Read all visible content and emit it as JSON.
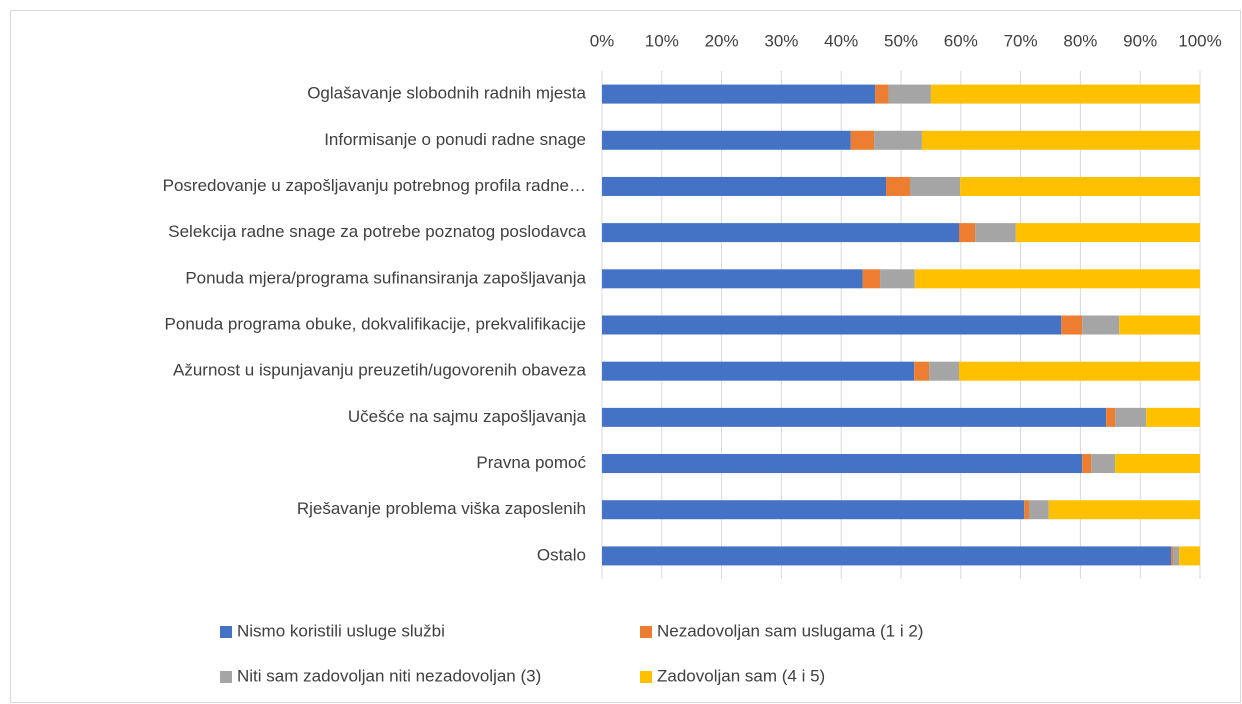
{
  "chart_data": {
    "type": "stacked_bar_horizontal",
    "categories": [
      "Oglašavanje slobodnih radnih mjesta",
      "Informisanje o ponudi radne snage",
      "Posredovanje u zapošljavanju potrebnog profila radne…",
      "Selekcija radne snage za potrebe poznatog poslodavca",
      "Ponuda mjera/programa sufinansiranja zapošljavanja",
      "Ponuda programa obuke, dokvalifikacije, prekvalifikacije",
      "Ažurnost u ispunjavanju preuzetih/ugovorenih obaveza",
      "Učešće na sajmu zapošljavanja",
      "Pravna pomoć",
      "Rješavanje problema viška zaposlenih",
      "Ostalo"
    ],
    "series": [
      {
        "name": "Nismo koristili usluge službi",
        "color": "#4472c4",
        "values": [
          45.7,
          41.6,
          47.5,
          59.7,
          43.6,
          76.8,
          52.2,
          84.3,
          80.3,
          70.6,
          95.2
        ]
      },
      {
        "name": "Nezadovoljan sam uslugama (1 i 2)",
        "color": "#ed7d31",
        "values": [
          2.2,
          3.9,
          4.0,
          2.7,
          2.9,
          3.5,
          2.5,
          1.5,
          1.5,
          0.8,
          0.3
        ]
      },
      {
        "name": "Niti sam zadovoljan niti nezadovoljan (3)",
        "color": "#a5a5a5",
        "values": [
          7.1,
          8.0,
          8.4,
          6.8,
          5.8,
          6.2,
          5.0,
          5.2,
          4.0,
          3.3,
          1.0
        ]
      },
      {
        "name": "Zadovoljan sam (4 i 5)",
        "color": "#ffc000",
        "values": [
          45.0,
          46.5,
          40.1,
          30.8,
          47.7,
          13.5,
          40.3,
          9.0,
          14.2,
          25.3,
          3.5
        ]
      }
    ],
    "xlim": [
      0,
      100
    ],
    "xticks": [
      {
        "value": 0,
        "label": "0%"
      },
      {
        "value": 10,
        "label": "10%"
      },
      {
        "value": 20,
        "label": "20%"
      },
      {
        "value": 30,
        "label": "30%"
      },
      {
        "value": 40,
        "label": "40%"
      },
      {
        "value": 50,
        "label": "50%"
      },
      {
        "value": 60,
        "label": "60%"
      },
      {
        "value": 70,
        "label": "70%"
      },
      {
        "value": 80,
        "label": "80%"
      },
      {
        "value": 90,
        "label": "90%"
      },
      {
        "value": 100,
        "label": "100%"
      }
    ],
    "grid": true
  }
}
